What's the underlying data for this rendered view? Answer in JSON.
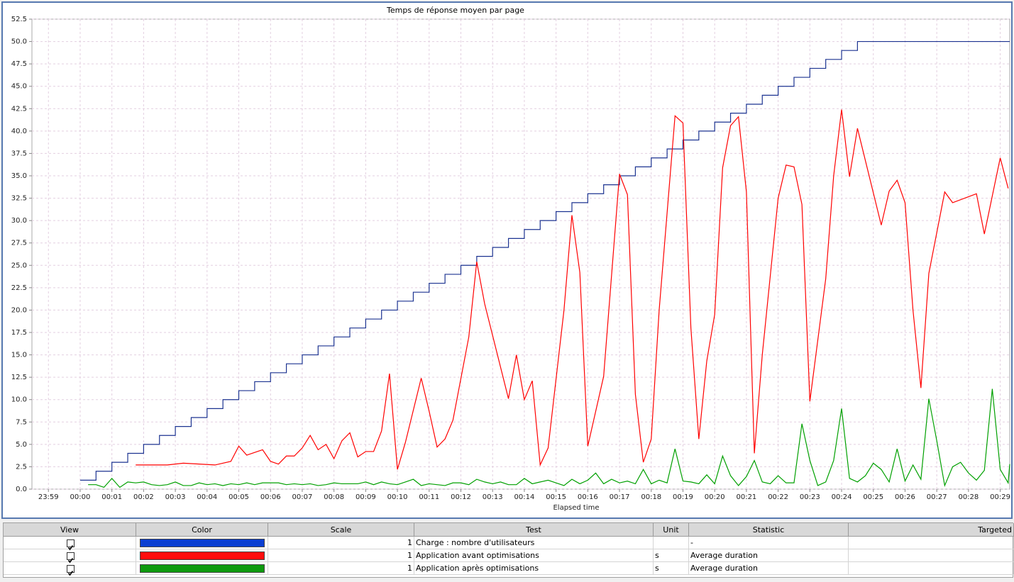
{
  "chart_data": {
    "type": "line",
    "title": "Temps de réponse moyen par page",
    "x_label": "Elapsed time",
    "grid": true,
    "xlim": [
      -1.52,
      29.3
    ],
    "xticks": [
      {
        "value": -1,
        "label": "23:59"
      },
      {
        "value": 0,
        "label": "00:00"
      },
      {
        "value": 1,
        "label": "00:01"
      },
      {
        "value": 2,
        "label": "00:02"
      },
      {
        "value": 3,
        "label": "00:03"
      },
      {
        "value": 4,
        "label": "00:04"
      },
      {
        "value": 5,
        "label": "00:05"
      },
      {
        "value": 6,
        "label": "00:06"
      },
      {
        "value": 7,
        "label": "00:07"
      },
      {
        "value": 8,
        "label": "00:08"
      },
      {
        "value": 9,
        "label": "00:09"
      },
      {
        "value": 10,
        "label": "00:10"
      },
      {
        "value": 11,
        "label": "00:11"
      },
      {
        "value": 12,
        "label": "00:12"
      },
      {
        "value": 13,
        "label": "00:13"
      },
      {
        "value": 14,
        "label": "00:14"
      },
      {
        "value": 15,
        "label": "00:15"
      },
      {
        "value": 16,
        "label": "00:16"
      },
      {
        "value": 17,
        "label": "00:17"
      },
      {
        "value": 18,
        "label": "00:18"
      },
      {
        "value": 19,
        "label": "00:19"
      },
      {
        "value": 20,
        "label": "00:20"
      },
      {
        "value": 21,
        "label": "00:21"
      },
      {
        "value": 22,
        "label": "00:22"
      },
      {
        "value": 23,
        "label": "00:23"
      },
      {
        "value": 24,
        "label": "00:24"
      },
      {
        "value": 25,
        "label": "00:25"
      },
      {
        "value": 26,
        "label": "00:26"
      },
      {
        "value": 27,
        "label": "00:27"
      },
      {
        "value": 28,
        "label": "00:28"
      },
      {
        "value": 29,
        "label": "00:29"
      }
    ],
    "ylim": [
      0,
      52.5
    ],
    "yticks": [
      {
        "value": 0,
        "label": "0.0"
      },
      2.5,
      {
        "value": 5,
        "label": "5.0"
      },
      7.5,
      {
        "value": 10,
        "label": "10.0"
      },
      12.5,
      {
        "value": 15,
        "label": "15.0"
      },
      17.5,
      {
        "value": 20,
        "label": "20.0"
      },
      22.5,
      {
        "value": 25,
        "label": "25.0"
      },
      27.5,
      {
        "value": 30,
        "label": "30.0"
      },
      32.5,
      {
        "value": 35,
        "label": "35.0"
      },
      37.5,
      {
        "value": 40,
        "label": "40.0"
      },
      42.5,
      {
        "value": 45,
        "label": "45.0"
      },
      47.5,
      {
        "value": 50,
        "label": "50.0"
      },
      52.5
    ],
    "series": [
      {
        "name": "Charge : nombre d'utilisateurs",
        "color": "#1c3391",
        "swatch_color": "#0b3fd2",
        "line_style": "step",
        "x": [
          0,
          0.5,
          1,
          1.5,
          2,
          2.5,
          3,
          3.5,
          4,
          4.5,
          5,
          5.5,
          6,
          6.5,
          7,
          7.5,
          8,
          8.5,
          9,
          9.5,
          10,
          10.5,
          11,
          11.5,
          12,
          12.5,
          13,
          13.5,
          14,
          14.5,
          15,
          15.5,
          16,
          16.5,
          17,
          17.5,
          18,
          18.5,
          19,
          19.5,
          20,
          20.5,
          21,
          21.5,
          22,
          22.5,
          23,
          23.5,
          24,
          24.5,
          29.3
        ],
        "values": [
          1,
          2,
          3,
          4,
          5,
          6,
          7,
          8,
          9,
          10,
          11,
          12,
          13,
          14,
          15,
          16,
          17,
          18,
          19,
          20,
          21,
          22,
          23,
          24,
          25,
          26,
          27,
          28,
          29,
          30,
          31,
          32,
          33,
          34,
          35,
          36,
          37,
          38,
          39,
          40,
          41,
          42,
          43,
          44,
          45,
          46,
          47,
          48,
          49,
          50,
          50
        ]
      },
      {
        "name": "Application avant optimisations",
        "color": "#ff0000",
        "swatch_color": "#ff0d0d",
        "line_style": "straight",
        "x": [
          1.75,
          2.75,
          3.25,
          4.25,
          4.75,
          5,
          5.25,
          5.75,
          6,
          6.25,
          6.5,
          6.75,
          7,
          7.25,
          7.5,
          7.75,
          8,
          8.25,
          8.5,
          8.75,
          9,
          9.25,
          9.5,
          9.75,
          10,
          10.25,
          10.75,
          11,
          11.25,
          11.5,
          11.75,
          12.25,
          12.5,
          12.75,
          13.5,
          13.75,
          14,
          14.25,
          14.5,
          14.75,
          15.25,
          15.5,
          15.75,
          16,
          16.5,
          17,
          17.25,
          17.5,
          17.75,
          18,
          18.25,
          18.75,
          19,
          19.25,
          19.5,
          19.75,
          20,
          20.25,
          20.5,
          20.75,
          21,
          21.25,
          21.5,
          22,
          22.25,
          22.5,
          22.75,
          23,
          23.5,
          23.75,
          24,
          24.25,
          24.5,
          25.25,
          25.5,
          25.75,
          26,
          26.25,
          26.5,
          26.75,
          27.25,
          27.5,
          28.25,
          28.5,
          29,
          29.25
        ],
        "values": [
          2.7,
          2.7,
          2.9,
          2.7,
          3.1,
          4.8,
          3.8,
          4.4,
          3.1,
          2.8,
          3.7,
          3.7,
          4.6,
          6.0,
          4.4,
          5.0,
          3.4,
          5.4,
          6.3,
          3.6,
          4.2,
          4.2,
          6.5,
          12.9,
          2.2,
          5.2,
          12.4,
          8.7,
          4.7,
          5.6,
          7.7,
          17.0,
          25.4,
          20.7,
          10.1,
          15.0,
          10.0,
          12.1,
          2.7,
          4.6,
          20.0,
          30.6,
          24.2,
          4.8,
          12.6,
          35.2,
          32.9,
          10.6,
          3.0,
          5.6,
          20.0,
          41.7,
          40.9,
          18.0,
          5.6,
          14.3,
          19.5,
          35.9,
          40.6,
          41.6,
          33.2,
          4.0,
          15.0,
          32.5,
          36.2,
          36.0,
          31.8,
          9.8,
          23.5,
          35.0,
          42.4,
          34.9,
          40.3,
          29.5,
          33.3,
          34.5,
          32.0,
          20.0,
          11.3,
          24.1,
          33.2,
          32.0,
          33.0,
          28.5,
          37.0,
          33.6
        ]
      },
      {
        "name": "Application après optimisations",
        "color": "#00a000",
        "swatch_color": "#0e9a0e",
        "line_style": "straight",
        "x": [
          0.25,
          0.5,
          0.75,
          1,
          1.25,
          1.5,
          1.75,
          2,
          2.25,
          2.5,
          2.75,
          3,
          3.25,
          3.5,
          3.75,
          4,
          4.25,
          4.5,
          4.75,
          5,
          5.25,
          5.5,
          5.75,
          6,
          6.25,
          6.5,
          6.75,
          7,
          7.25,
          7.5,
          7.75,
          8,
          8.25,
          8.5,
          8.75,
          9,
          9.25,
          9.5,
          9.75,
          10,
          10.25,
          10.5,
          10.75,
          11,
          11.25,
          11.5,
          11.75,
          12,
          12.25,
          12.5,
          12.75,
          13,
          13.25,
          13.5,
          13.75,
          14,
          14.25,
          14.5,
          14.75,
          15,
          15.25,
          15.5,
          15.75,
          16,
          16.25,
          16.5,
          16.75,
          17,
          17.25,
          17.5,
          17.75,
          18,
          18.25,
          18.5,
          18.75,
          19,
          19.25,
          19.5,
          19.75,
          20,
          20.25,
          20.5,
          20.75,
          21,
          21.25,
          21.5,
          21.75,
          22,
          22.25,
          22.5,
          22.75,
          23,
          23.25,
          23.5,
          23.75,
          24,
          24.25,
          24.5,
          24.75,
          25,
          25.25,
          25.5,
          25.75,
          26,
          26.25,
          26.5,
          26.75,
          27,
          27.25,
          27.5,
          27.75,
          28,
          28.25,
          28.5,
          28.75,
          29,
          29.25,
          29.3
        ],
        "values": [
          0.5,
          0.5,
          0.2,
          1.2,
          0.2,
          0.8,
          0.7,
          0.8,
          0.5,
          0.4,
          0.5,
          0.8,
          0.4,
          0.4,
          0.7,
          0.5,
          0.6,
          0.4,
          0.6,
          0.5,
          0.7,
          0.5,
          0.7,
          0.7,
          0.7,
          0.5,
          0.6,
          0.5,
          0.6,
          0.4,
          0.5,
          0.7,
          0.6,
          0.6,
          0.6,
          0.8,
          0.5,
          0.8,
          0.6,
          0.5,
          0.8,
          1.1,
          0.4,
          0.6,
          0.5,
          0.4,
          0.7,
          0.7,
          0.5,
          1.1,
          0.8,
          0.6,
          0.8,
          0.5,
          0.5,
          1.2,
          0.6,
          0.8,
          1.0,
          0.7,
          0.4,
          1.1,
          0.6,
          1.0,
          1.8,
          0.6,
          1.1,
          0.7,
          0.9,
          0.6,
          2.2,
          0.6,
          1.0,
          0.7,
          4.5,
          0.9,
          0.8,
          0.6,
          1.6,
          0.6,
          3.7,
          1.5,
          0.4,
          1.4,
          3.2,
          0.8,
          0.6,
          1.5,
          0.7,
          0.7,
          7.3,
          3.2,
          0.4,
          0.8,
          3.2,
          9.0,
          1.2,
          0.8,
          1.5,
          2.9,
          2.2,
          0.8,
          4.5,
          0.9,
          2.7,
          1.1,
          10.1,
          5.4,
          0.4,
          2.5,
          3.0,
          1.8,
          1.0,
          2.1,
          11.2,
          2.2,
          0.7,
          2.8
        ]
      }
    ]
  },
  "table": {
    "columns": [
      "View",
      "Color",
      "Scale",
      "Test",
      "Unit",
      "Statistic",
      "Targeted"
    ],
    "rows": [
      {
        "scale": 1,
        "test": "Charge : nombre d'utilisateurs",
        "statistic": "-"
      },
      {
        "scale": 1,
        "test": "Application avant optimisations",
        "unit": "s",
        "statistic": "Average duration"
      },
      {
        "scale": 1,
        "test": "Application après optimisations",
        "unit": "s",
        "statistic": "Average duration"
      }
    ]
  }
}
